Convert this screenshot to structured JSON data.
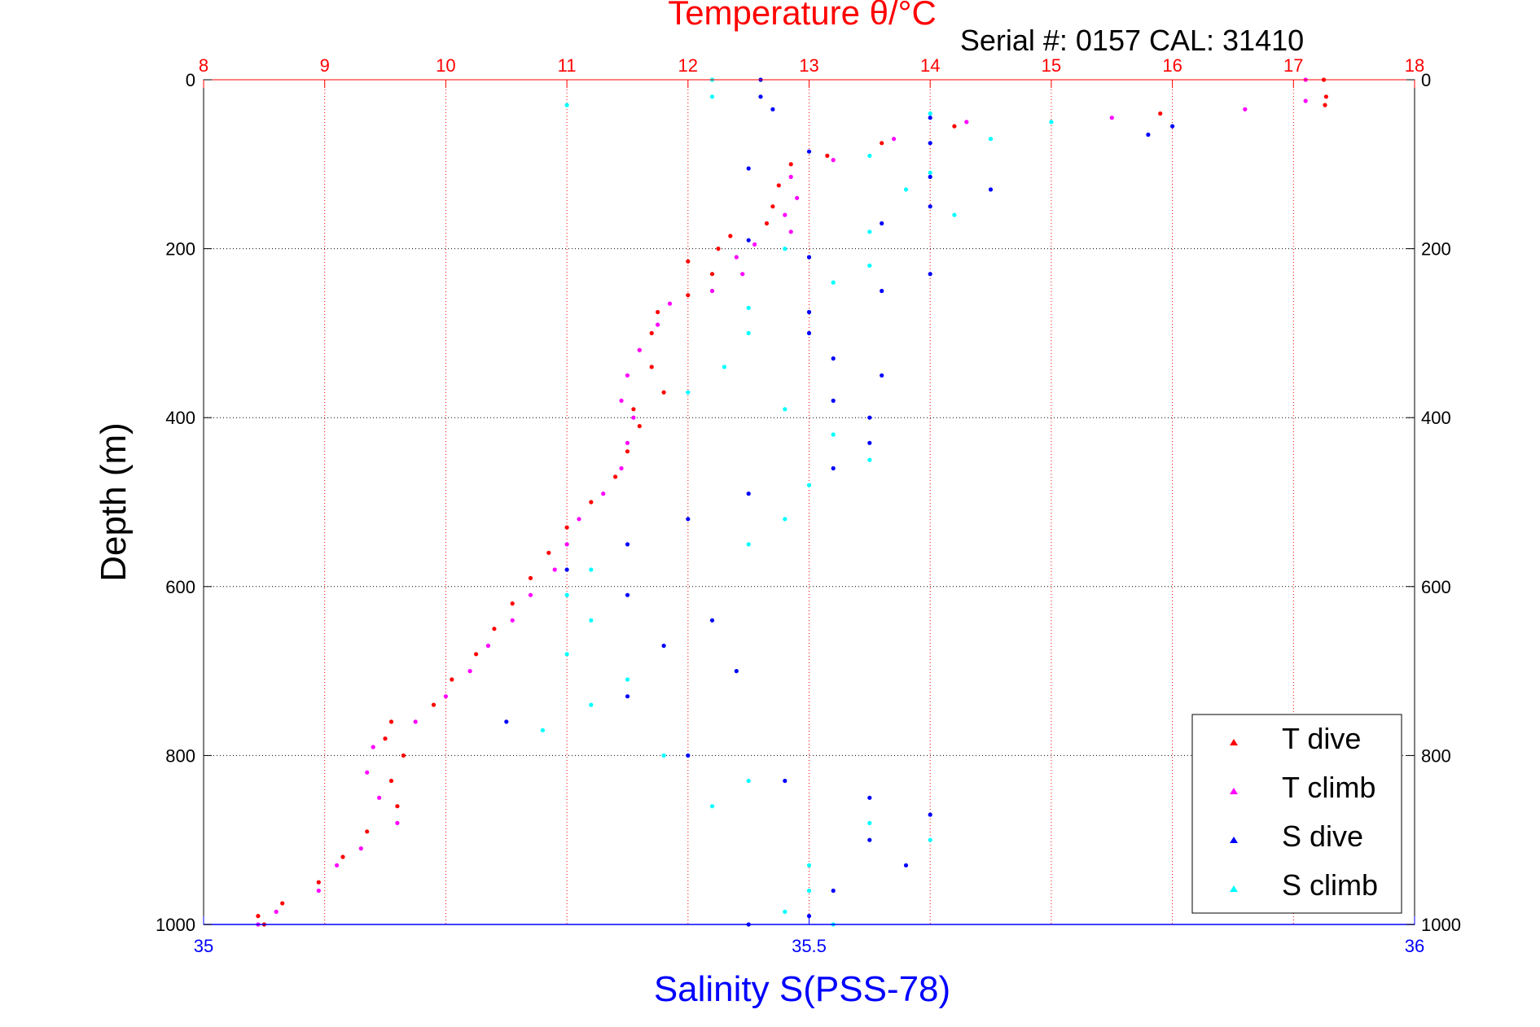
{
  "chart_data": {
    "type": "scatter",
    "title": "Temperature θ/°C",
    "subtitle": "Serial #: 0157  CAL: 31410",
    "ylabel": "Depth (m)",
    "xlabel": "Salinity S(PSS-78)",
    "y_range": [
      0,
      1000
    ],
    "y_reversed": true,
    "y_ticks": [
      0,
      200,
      400,
      600,
      800,
      1000
    ],
    "temperature_axis": {
      "range": [
        8,
        18
      ],
      "ticks": [
        8,
        9,
        10,
        11,
        12,
        13,
        14,
        15,
        16,
        17,
        18
      ],
      "position": "top",
      "color": "#ff0000"
    },
    "salinity_axis": {
      "range": [
        35,
        36
      ],
      "ticks": [
        35,
        35.5,
        36
      ],
      "position": "bottom",
      "color": "#0000ff"
    },
    "grid": true,
    "legend": {
      "position": "bottom-right",
      "entries": [
        {
          "label": "T dive",
          "color": "#ff0000"
        },
        {
          "label": "T climb",
          "color": "#ff00ff"
        },
        {
          "label": "S dive",
          "color": "#0000ff"
        },
        {
          "label": "S climb",
          "color": "#00ffff"
        }
      ]
    },
    "series": [
      {
        "name": "T dive",
        "axis": "temperature",
        "color": "#ff0000",
        "points": [
          [
            17.25,
            0
          ],
          [
            17.27,
            20
          ],
          [
            17.26,
            30
          ],
          [
            15.9,
            40
          ],
          [
            14.2,
            55
          ],
          [
            13.6,
            75
          ],
          [
            13.15,
            90
          ],
          [
            12.85,
            100
          ],
          [
            12.75,
            125
          ],
          [
            12.7,
            150
          ],
          [
            12.65,
            170
          ],
          [
            12.35,
            185
          ],
          [
            12.25,
            200
          ],
          [
            12.0,
            215
          ],
          [
            12.2,
            230
          ],
          [
            12.0,
            255
          ],
          [
            11.75,
            275
          ],
          [
            11.7,
            300
          ],
          [
            11.6,
            320
          ],
          [
            11.7,
            340
          ],
          [
            11.8,
            370
          ],
          [
            11.55,
            390
          ],
          [
            11.6,
            410
          ],
          [
            11.5,
            440
          ],
          [
            11.4,
            470
          ],
          [
            11.2,
            500
          ],
          [
            11.0,
            530
          ],
          [
            10.85,
            560
          ],
          [
            10.7,
            590
          ],
          [
            10.55,
            620
          ],
          [
            10.4,
            650
          ],
          [
            10.25,
            680
          ],
          [
            10.05,
            710
          ],
          [
            9.9,
            740
          ],
          [
            9.55,
            760
          ],
          [
            9.5,
            780
          ],
          [
            9.65,
            800
          ],
          [
            9.55,
            830
          ],
          [
            9.6,
            860
          ],
          [
            9.35,
            890
          ],
          [
            9.15,
            920
          ],
          [
            8.95,
            950
          ],
          [
            8.65,
            975
          ],
          [
            8.45,
            990
          ],
          [
            8.5,
            1000
          ]
        ]
      },
      {
        "name": "T climb",
        "axis": "temperature",
        "color": "#ff00ff",
        "points": [
          [
            17.1,
            0
          ],
          [
            17.1,
            25
          ],
          [
            16.6,
            35
          ],
          [
            15.5,
            45
          ],
          [
            14.3,
            50
          ],
          [
            13.7,
            70
          ],
          [
            13.2,
            95
          ],
          [
            12.85,
            115
          ],
          [
            12.9,
            140
          ],
          [
            12.8,
            160
          ],
          [
            12.85,
            180
          ],
          [
            12.55,
            195
          ],
          [
            12.4,
            210
          ],
          [
            12.45,
            230
          ],
          [
            12.2,
            250
          ],
          [
            11.85,
            265
          ],
          [
            11.75,
            290
          ],
          [
            11.6,
            320
          ],
          [
            11.5,
            350
          ],
          [
            11.45,
            380
          ],
          [
            11.55,
            400
          ],
          [
            11.5,
            430
          ],
          [
            11.45,
            460
          ],
          [
            11.3,
            490
          ],
          [
            11.1,
            520
          ],
          [
            11.0,
            550
          ],
          [
            10.9,
            580
          ],
          [
            10.7,
            610
          ],
          [
            10.55,
            640
          ],
          [
            10.35,
            670
          ],
          [
            10.2,
            700
          ],
          [
            10.0,
            730
          ],
          [
            9.75,
            760
          ],
          [
            9.4,
            790
          ],
          [
            9.35,
            820
          ],
          [
            9.45,
            850
          ],
          [
            9.6,
            880
          ],
          [
            9.3,
            910
          ],
          [
            9.1,
            930
          ],
          [
            8.95,
            960
          ],
          [
            8.6,
            985
          ],
          [
            8.45,
            1000
          ]
        ]
      },
      {
        "name": "S dive",
        "axis": "salinity",
        "color": "#0000ff",
        "points": [
          [
            35.46,
            0
          ],
          [
            35.46,
            20
          ],
          [
            35.47,
            35
          ],
          [
            35.6,
            45
          ],
          [
            35.8,
            55
          ],
          [
            35.78,
            65
          ],
          [
            35.6,
            75
          ],
          [
            35.5,
            85
          ],
          [
            35.45,
            105
          ],
          [
            35.6,
            115
          ],
          [
            35.65,
            130
          ],
          [
            35.6,
            150
          ],
          [
            35.56,
            170
          ],
          [
            35.45,
            190
          ],
          [
            35.5,
            210
          ],
          [
            35.6,
            230
          ],
          [
            35.56,
            250
          ],
          [
            35.5,
            275
          ],
          [
            35.5,
            300
          ],
          [
            35.52,
            330
          ],
          [
            35.56,
            350
          ],
          [
            35.52,
            380
          ],
          [
            35.55,
            400
          ],
          [
            35.55,
            430
          ],
          [
            35.52,
            460
          ],
          [
            35.45,
            490
          ],
          [
            35.4,
            520
          ],
          [
            35.35,
            550
          ],
          [
            35.3,
            580
          ],
          [
            35.35,
            610
          ],
          [
            35.42,
            640
          ],
          [
            35.38,
            670
          ],
          [
            35.44,
            700
          ],
          [
            35.35,
            730
          ],
          [
            35.25,
            760
          ],
          [
            35.4,
            800
          ],
          [
            35.48,
            830
          ],
          [
            35.55,
            850
          ],
          [
            35.6,
            870
          ],
          [
            35.55,
            900
          ],
          [
            35.58,
            930
          ],
          [
            35.52,
            960
          ],
          [
            35.5,
            990
          ],
          [
            35.45,
            1000
          ]
        ]
      },
      {
        "name": "S climb",
        "axis": "salinity",
        "color": "#00ffff",
        "points": [
          [
            35.42,
            0
          ],
          [
            35.42,
            20
          ],
          [
            35.3,
            30
          ],
          [
            35.6,
            40
          ],
          [
            35.7,
            50
          ],
          [
            35.65,
            70
          ],
          [
            35.55,
            90
          ],
          [
            35.6,
            110
          ],
          [
            35.58,
            130
          ],
          [
            35.62,
            160
          ],
          [
            35.55,
            180
          ],
          [
            35.48,
            200
          ],
          [
            35.55,
            220
          ],
          [
            35.52,
            240
          ],
          [
            35.45,
            270
          ],
          [
            35.45,
            300
          ],
          [
            35.43,
            340
          ],
          [
            35.4,
            370
          ],
          [
            35.48,
            390
          ],
          [
            35.52,
            420
          ],
          [
            35.55,
            450
          ],
          [
            35.5,
            480
          ],
          [
            35.48,
            520
          ],
          [
            35.45,
            550
          ],
          [
            35.32,
            580
          ],
          [
            35.3,
            610
          ],
          [
            35.32,
            640
          ],
          [
            35.3,
            680
          ],
          [
            35.35,
            710
          ],
          [
            35.32,
            740
          ],
          [
            35.28,
            770
          ],
          [
            35.38,
            800
          ],
          [
            35.45,
            830
          ],
          [
            35.42,
            860
          ],
          [
            35.55,
            880
          ],
          [
            35.6,
            900
          ],
          [
            35.5,
            930
          ],
          [
            35.5,
            960
          ],
          [
            35.48,
            985
          ],
          [
            35.52,
            1000
          ]
        ]
      }
    ]
  }
}
